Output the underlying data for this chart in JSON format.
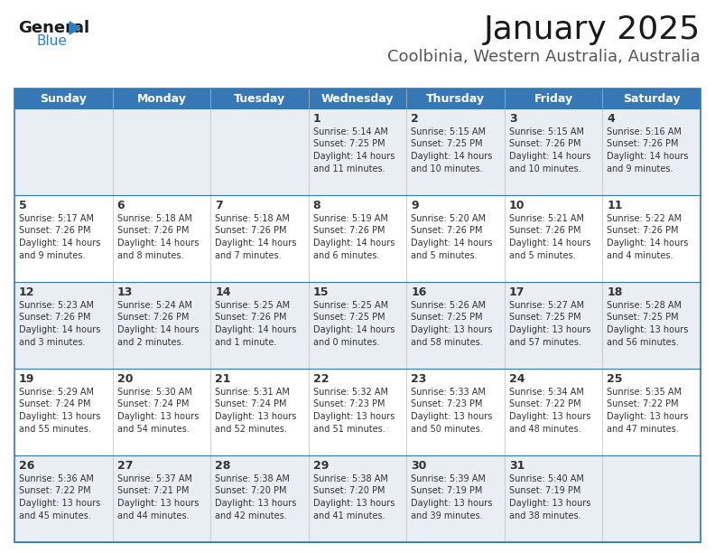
{
  "title": "January 2025",
  "subtitle": "Coolbinia, Western Australia, Australia",
  "header_color": "#3578B5",
  "header_text_color": "#FFFFFF",
  "cell_bg_row0": "#E8EEF4",
  "cell_bg_row1": "#FFFFFF",
  "cell_bg_row2": "#E8EEF4",
  "cell_bg_row3": "#FFFFFF",
  "cell_bg_row4": "#E8EEF4",
  "days_of_week": [
    "Sunday",
    "Monday",
    "Tuesday",
    "Wednesday",
    "Thursday",
    "Friday",
    "Saturday"
  ],
  "calendar": [
    [
      {
        "day": "",
        "sunrise": "",
        "sunset": "",
        "daylight": ""
      },
      {
        "day": "",
        "sunrise": "",
        "sunset": "",
        "daylight": ""
      },
      {
        "day": "",
        "sunrise": "",
        "sunset": "",
        "daylight": ""
      },
      {
        "day": "1",
        "sunrise": "5:14 AM",
        "sunset": "7:25 PM",
        "daylight": "14 hours and 11 minutes."
      },
      {
        "day": "2",
        "sunrise": "5:15 AM",
        "sunset": "7:25 PM",
        "daylight": "14 hours and 10 minutes."
      },
      {
        "day": "3",
        "sunrise": "5:15 AM",
        "sunset": "7:26 PM",
        "daylight": "14 hours and 10 minutes."
      },
      {
        "day": "4",
        "sunrise": "5:16 AM",
        "sunset": "7:26 PM",
        "daylight": "14 hours and 9 minutes."
      }
    ],
    [
      {
        "day": "5",
        "sunrise": "5:17 AM",
        "sunset": "7:26 PM",
        "daylight": "14 hours and 9 minutes."
      },
      {
        "day": "6",
        "sunrise": "5:18 AM",
        "sunset": "7:26 PM",
        "daylight": "14 hours and 8 minutes."
      },
      {
        "day": "7",
        "sunrise": "5:18 AM",
        "sunset": "7:26 PM",
        "daylight": "14 hours and 7 minutes."
      },
      {
        "day": "8",
        "sunrise": "5:19 AM",
        "sunset": "7:26 PM",
        "daylight": "14 hours and 6 minutes."
      },
      {
        "day": "9",
        "sunrise": "5:20 AM",
        "sunset": "7:26 PM",
        "daylight": "14 hours and 5 minutes."
      },
      {
        "day": "10",
        "sunrise": "5:21 AM",
        "sunset": "7:26 PM",
        "daylight": "14 hours and 5 minutes."
      },
      {
        "day": "11",
        "sunrise": "5:22 AM",
        "sunset": "7:26 PM",
        "daylight": "14 hours and 4 minutes."
      }
    ],
    [
      {
        "day": "12",
        "sunrise": "5:23 AM",
        "sunset": "7:26 PM",
        "daylight": "14 hours and 3 minutes."
      },
      {
        "day": "13",
        "sunrise": "5:24 AM",
        "sunset": "7:26 PM",
        "daylight": "14 hours and 2 minutes."
      },
      {
        "day": "14",
        "sunrise": "5:25 AM",
        "sunset": "7:26 PM",
        "daylight": "14 hours and 1 minute."
      },
      {
        "day": "15",
        "sunrise": "5:25 AM",
        "sunset": "7:25 PM",
        "daylight": "14 hours and 0 minutes."
      },
      {
        "day": "16",
        "sunrise": "5:26 AM",
        "sunset": "7:25 PM",
        "daylight": "13 hours and 58 minutes."
      },
      {
        "day": "17",
        "sunrise": "5:27 AM",
        "sunset": "7:25 PM",
        "daylight": "13 hours and 57 minutes."
      },
      {
        "day": "18",
        "sunrise": "5:28 AM",
        "sunset": "7:25 PM",
        "daylight": "13 hours and 56 minutes."
      }
    ],
    [
      {
        "day": "19",
        "sunrise": "5:29 AM",
        "sunset": "7:24 PM",
        "daylight": "13 hours and 55 minutes."
      },
      {
        "day": "20",
        "sunrise": "5:30 AM",
        "sunset": "7:24 PM",
        "daylight": "13 hours and 54 minutes."
      },
      {
        "day": "21",
        "sunrise": "5:31 AM",
        "sunset": "7:24 PM",
        "daylight": "13 hours and 52 minutes."
      },
      {
        "day": "22",
        "sunrise": "5:32 AM",
        "sunset": "7:23 PM",
        "daylight": "13 hours and 51 minutes."
      },
      {
        "day": "23",
        "sunrise": "5:33 AM",
        "sunset": "7:23 PM",
        "daylight": "13 hours and 50 minutes."
      },
      {
        "day": "24",
        "sunrise": "5:34 AM",
        "sunset": "7:22 PM",
        "daylight": "13 hours and 48 minutes."
      },
      {
        "day": "25",
        "sunrise": "5:35 AM",
        "sunset": "7:22 PM",
        "daylight": "13 hours and 47 minutes."
      }
    ],
    [
      {
        "day": "26",
        "sunrise": "5:36 AM",
        "sunset": "7:22 PM",
        "daylight": "13 hours and 45 minutes."
      },
      {
        "day": "27",
        "sunrise": "5:37 AM",
        "sunset": "7:21 PM",
        "daylight": "13 hours and 44 minutes."
      },
      {
        "day": "28",
        "sunrise": "5:38 AM",
        "sunset": "7:20 PM",
        "daylight": "13 hours and 42 minutes."
      },
      {
        "day": "29",
        "sunrise": "5:38 AM",
        "sunset": "7:20 PM",
        "daylight": "13 hours and 41 minutes."
      },
      {
        "day": "30",
        "sunrise": "5:39 AM",
        "sunset": "7:19 PM",
        "daylight": "13 hours and 39 minutes."
      },
      {
        "day": "31",
        "sunrise": "5:40 AM",
        "sunset": "7:19 PM",
        "daylight": "13 hours and 38 minutes."
      },
      {
        "day": "",
        "sunrise": "",
        "sunset": "",
        "daylight": ""
      }
    ]
  ],
  "page_bg": "#FFFFFF",
  "border_color": "#3578B5",
  "text_color": "#333333",
  "grid_line_color": "#3578B5",
  "title_fontsize": 26,
  "subtitle_fontsize": 13,
  "header_fontsize": 9,
  "day_num_fontsize": 9,
  "info_fontsize": 7
}
